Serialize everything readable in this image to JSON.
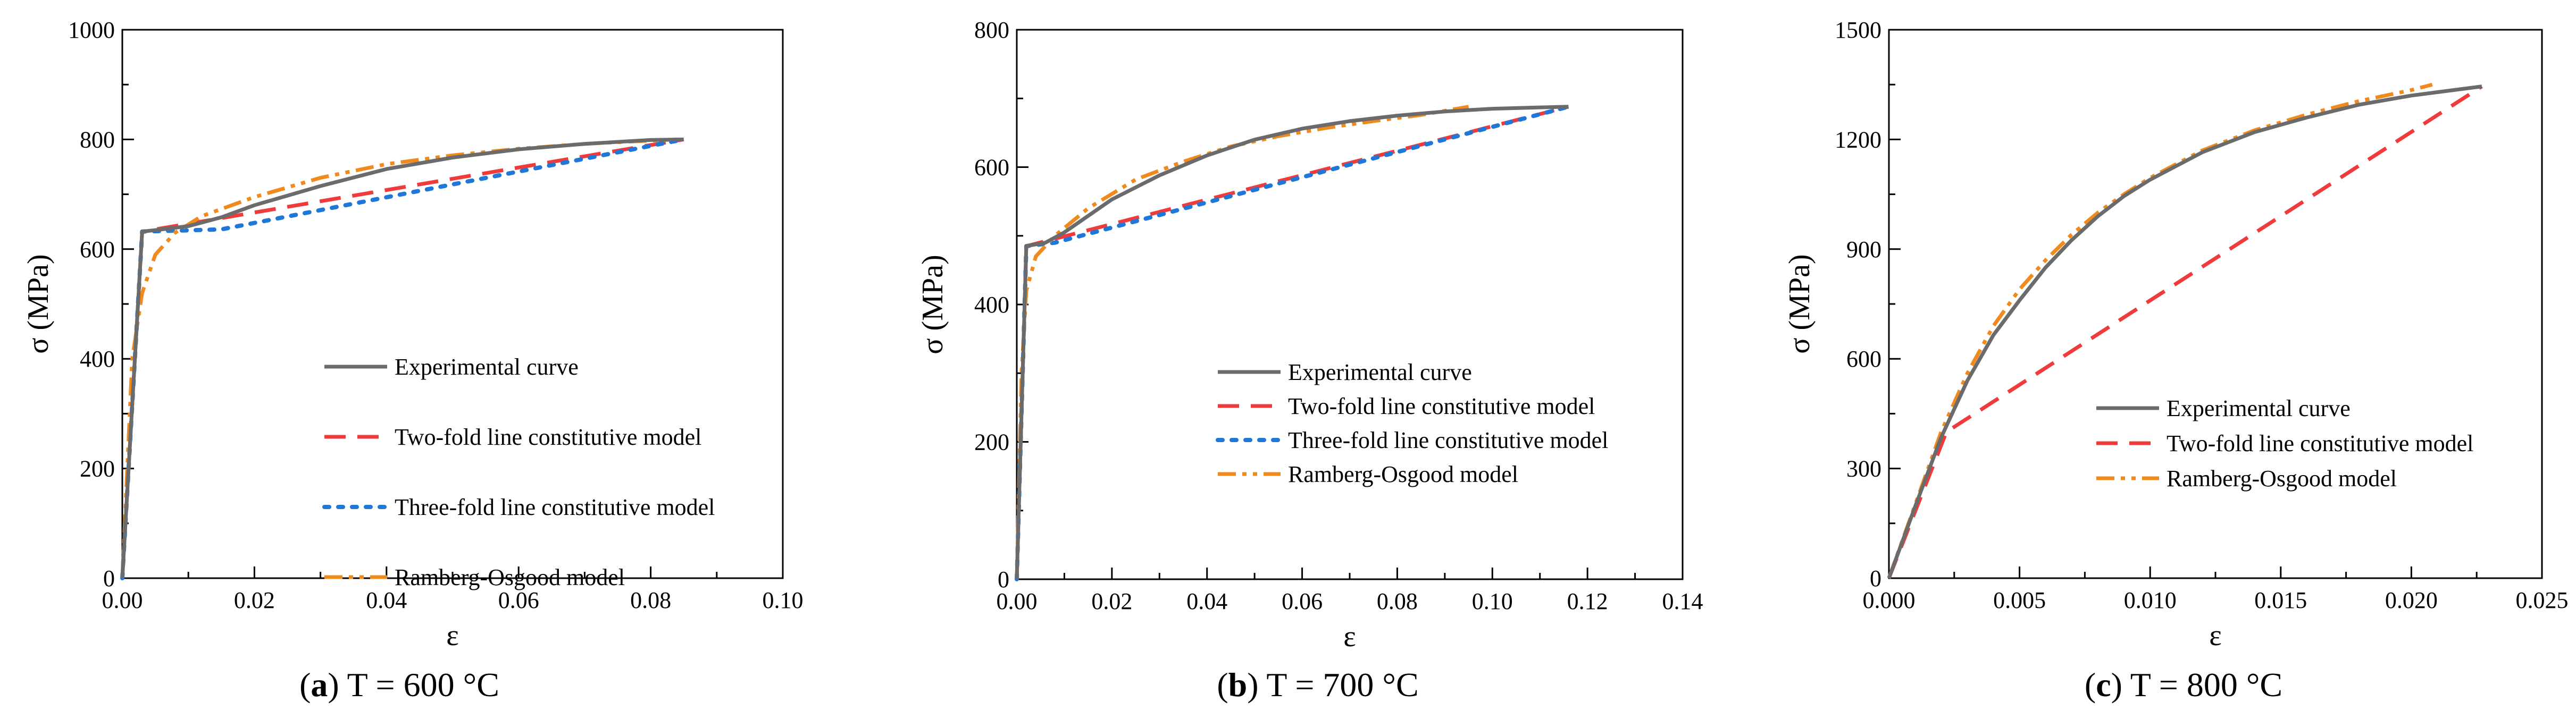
{
  "style": {
    "colors": {
      "experimental": "#6b6b6b",
      "two_fold": "#ef3b3b",
      "three_fold": "#1f77d8",
      "ramberg": "#f08a1c"
    }
  },
  "chart_data": [
    {
      "type": "line",
      "xlabel": "ε",
      "ylabel": "σ (MPa)",
      "xlim": [
        0,
        0.1
      ],
      "ylim": [
        0,
        1000
      ],
      "xticks": [
        "0.00",
        "0.02",
        "0.04",
        "0.06",
        "0.08",
        "0.10"
      ],
      "yticks": [
        "0",
        "200",
        "400",
        "600",
        "800",
        "1000"
      ],
      "caption": {
        "letter": "a",
        "text": ") T = 600 °C"
      },
      "legend_placement": "center-right",
      "series": [
        {
          "name": "Experimental curve",
          "key": "experimental",
          "points": [
            [
              0,
              0
            ],
            [
              0.003,
              632
            ],
            [
              0.006,
              636
            ],
            [
              0.01,
              642
            ],
            [
              0.015,
              658
            ],
            [
              0.02,
              680
            ],
            [
              0.03,
              715
            ],
            [
              0.04,
              746
            ],
            [
              0.05,
              767
            ],
            [
              0.06,
              782
            ],
            [
              0.07,
              792
            ],
            [
              0.08,
              799
            ],
            [
              0.085,
              800
            ]
          ]
        },
        {
          "name": "Two-fold line constitutive model",
          "key": "two_fold",
          "points": [
            [
              0,
              0
            ],
            [
              0.003,
              632
            ],
            [
              0.085,
              800
            ]
          ]
        },
        {
          "name": "Three-fold line constitutive model",
          "key": "three_fold",
          "points": [
            [
              0,
              0
            ],
            [
              0.003,
              632
            ],
            [
              0.015,
              636
            ],
            [
              0.085,
              800
            ]
          ]
        },
        {
          "name": "Ramberg-Osgood model",
          "key": "ramberg",
          "points": [
            [
              0,
              0
            ],
            [
              0.0015,
              400
            ],
            [
              0.003,
              520
            ],
            [
              0.005,
              590
            ],
            [
              0.008,
              630
            ],
            [
              0.012,
              660
            ],
            [
              0.02,
              695
            ],
            [
              0.03,
              730
            ],
            [
              0.04,
              755
            ],
            [
              0.05,
              771
            ],
            [
              0.06,
              783
            ],
            [
              0.07,
              792
            ],
            [
              0.08,
              798
            ],
            [
              0.084,
              800
            ]
          ]
        }
      ]
    },
    {
      "type": "line",
      "xlabel": "ε",
      "ylabel": "σ (MPa)",
      "xlim": [
        0,
        0.14
      ],
      "ylim": [
        0,
        800
      ],
      "xticks": [
        "0.00",
        "0.02",
        "0.04",
        "0.06",
        "0.08",
        "0.10",
        "0.12",
        "0.14"
      ],
      "yticks": [
        "0",
        "200",
        "400",
        "600",
        "800"
      ],
      "caption": {
        "letter": "b",
        "text": ") T = 700 °C"
      },
      "legend_placement": "bottom-right",
      "series": [
        {
          "name": "Experimental curve",
          "key": "experimental",
          "points": [
            [
              0,
              0
            ],
            [
              0.002,
              485
            ],
            [
              0.006,
              490
            ],
            [
              0.01,
              505
            ],
            [
              0.02,
              553
            ],
            [
              0.03,
              588
            ],
            [
              0.04,
              617
            ],
            [
              0.05,
              640
            ],
            [
              0.06,
              656
            ],
            [
              0.07,
              667
            ],
            [
              0.08,
              675
            ],
            [
              0.09,
              681
            ],
            [
              0.1,
              685
            ],
            [
              0.11,
              687
            ],
            [
              0.116,
              688
            ]
          ]
        },
        {
          "name": "Two-fold line constitutive model",
          "key": "two_fold",
          "points": [
            [
              0,
              0
            ],
            [
              0.002,
              485
            ],
            [
              0.116,
              688
            ]
          ]
        },
        {
          "name": "Three-fold line constitutive model",
          "key": "three_fold",
          "points": [
            [
              0,
              0
            ],
            [
              0.002,
              485
            ],
            [
              0.008,
              490
            ],
            [
              0.116,
              688
            ]
          ]
        },
        {
          "name": "Ramberg-Osgood model",
          "key": "ramberg",
          "points": [
            [
              0,
              0
            ],
            [
              0.001,
              300
            ],
            [
              0.002,
              420
            ],
            [
              0.004,
              470
            ],
            [
              0.008,
              500
            ],
            [
              0.015,
              540
            ],
            [
              0.025,
              582
            ],
            [
              0.035,
              608
            ],
            [
              0.045,
              630
            ],
            [
              0.055,
              645
            ],
            [
              0.065,
              657
            ],
            [
              0.075,
              667
            ],
            [
              0.085,
              676
            ],
            [
              0.095,
              688
            ]
          ]
        }
      ]
    },
    {
      "type": "line",
      "xlabel": "ε",
      "ylabel": "σ (MPa)",
      "xlim": [
        0,
        0.025
      ],
      "ylim": [
        0,
        1500
      ],
      "xticks": [
        "0.000",
        "0.005",
        "0.010",
        "0.015",
        "0.020",
        "0.025"
      ],
      "yticks": [
        "0",
        "300",
        "600",
        "900",
        "1200",
        "1500"
      ],
      "caption": {
        "letter": "c",
        "text": ") T = 800 °C"
      },
      "legend_placement": "bottom-right",
      "series": [
        {
          "name": "Experimental curve",
          "key": "experimental",
          "points": [
            [
              0,
              0
            ],
            [
              0.001,
              195
            ],
            [
              0.002,
              385
            ],
            [
              0.003,
              540
            ],
            [
              0.004,
              665
            ],
            [
              0.005,
              760
            ],
            [
              0.006,
              850
            ],
            [
              0.007,
              925
            ],
            [
              0.008,
              990
            ],
            [
              0.009,
              1045
            ],
            [
              0.01,
              1090
            ],
            [
              0.012,
              1165
            ],
            [
              0.014,
              1220
            ],
            [
              0.016,
              1260
            ],
            [
              0.018,
              1295
            ],
            [
              0.02,
              1320
            ],
            [
              0.0227,
              1345
            ]
          ]
        },
        {
          "name": "Two-fold line constitutive model",
          "key": "two_fold",
          "points": [
            [
              0,
              0
            ],
            [
              0.0022,
              400
            ],
            [
              0.0227,
              1345
            ]
          ]
        },
        {
          "name": "Ramberg-Osgood model",
          "key": "ramberg",
          "points": [
            [
              0,
              0
            ],
            [
              0.001,
              200
            ],
            [
              0.002,
              400
            ],
            [
              0.003,
              560
            ],
            [
              0.004,
              690
            ],
            [
              0.005,
              790
            ],
            [
              0.006,
              870
            ],
            [
              0.007,
              940
            ],
            [
              0.008,
              1000
            ],
            [
              0.009,
              1050
            ],
            [
              0.01,
              1095
            ],
            [
              0.012,
              1170
            ],
            [
              0.014,
              1225
            ],
            [
              0.016,
              1268
            ],
            [
              0.018,
              1305
            ],
            [
              0.02,
              1335
            ],
            [
              0.0208,
              1350
            ]
          ]
        }
      ]
    }
  ]
}
